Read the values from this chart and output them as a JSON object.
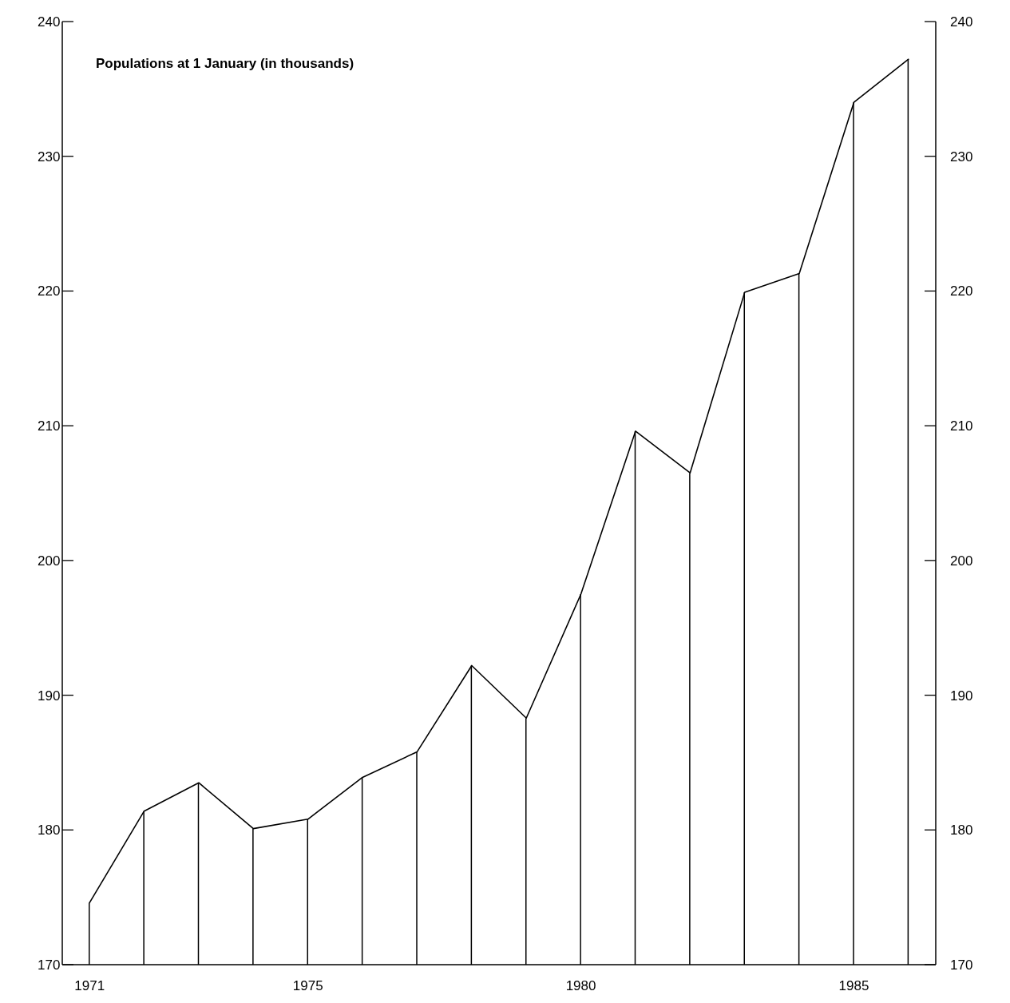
{
  "chart_data": {
    "type": "line",
    "title": "Populations at 1 January (in thousands)",
    "x": [
      1971,
      1972,
      1973,
      1974,
      1975,
      1976,
      1977,
      1978,
      1979,
      1980,
      1981,
      1982,
      1983,
      1984,
      1985,
      1986
    ],
    "xlim": [
      1970.5,
      1986.5
    ],
    "xticks": [
      1971,
      1975,
      1980,
      1985
    ],
    "ylim": [
      170,
      240
    ],
    "yticks": [
      170,
      180,
      190,
      200,
      210,
      220,
      230,
      240
    ],
    "y2lim": [
      170,
      240
    ],
    "y2ticks": [
      170,
      180,
      190,
      200,
      210,
      220,
      230,
      240
    ],
    "marker": "none",
    "line_style": "solid",
    "series": [
      {
        "color": "#000000",
        "values": [
          174.6,
          181.4,
          183.5,
          180.1,
          180.8,
          183.9,
          185.8,
          192.2,
          188.3,
          197.5,
          209.6,
          206.5,
          219.9,
          221.3,
          234.0,
          237.2
        ]
      },
      {
        "type": "bar",
        "color": "#000000",
        "values": [
          174.6,
          181.4,
          183.5,
          180.1,
          180.8,
          183.9,
          185.8,
          192.2,
          188.3,
          197.5,
          209.6,
          206.5,
          219.9,
          221.3,
          234.0,
          237.2
        ]
      }
    ]
  }
}
